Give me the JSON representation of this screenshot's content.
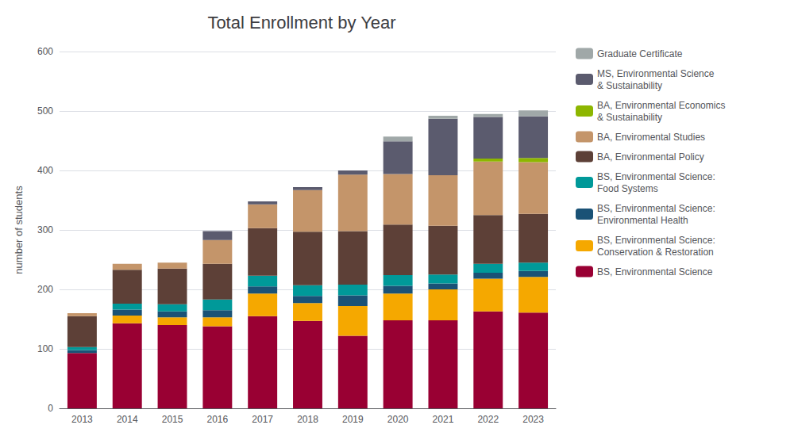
{
  "chart_data": {
    "type": "bar",
    "title": "Total Enrollment by Year",
    "ylabel": "number of students",
    "categories": [
      "2013",
      "2014",
      "2015",
      "2016",
      "2017",
      "2018",
      "2019",
      "2020",
      "2021",
      "2022",
      "2023"
    ],
    "series": [
      {
        "name": "BS, Environmental Science",
        "color": "#990033",
        "values": [
          93,
          143,
          140,
          138,
          155,
          147,
          122,
          148,
          148,
          163,
          161
        ]
      },
      {
        "name": "BS, Environmental Science:\nConservation & Restoration",
        "color": "#F5A800",
        "values": [
          0,
          13,
          13,
          15,
          38,
          30,
          50,
          45,
          52,
          55,
          60
        ]
      },
      {
        "name": "BS, Environmental Science:\nEnvironmental Health",
        "color": "#1A5276",
        "values": [
          5,
          10,
          10,
          12,
          12,
          12,
          18,
          13,
          10,
          10,
          10
        ]
      },
      {
        "name": "BS, Environmental Science:\nFood Systems",
        "color": "#009999",
        "values": [
          5,
          10,
          12,
          18,
          18,
          18,
          18,
          18,
          15,
          15,
          14
        ]
      },
      {
        "name": "BA, Environmental Policy",
        "color": "#5D4037",
        "values": [
          52,
          57,
          60,
          60,
          80,
          90,
          90,
          85,
          82,
          82,
          82
        ]
      },
      {
        "name": "BA, Enviromental Studies",
        "color": "#C4956A",
        "values": [
          5,
          10,
          10,
          40,
          40,
          70,
          95,
          85,
          85,
          90,
          87
        ]
      },
      {
        "name": "BA, Environmental Economics\n& Sustainability",
        "color": "#8DB600",
        "values": [
          0,
          0,
          0,
          0,
          0,
          0,
          0,
          0,
          0,
          5,
          7
        ]
      },
      {
        "name": "MS, Environmental Science\n& Sustainability",
        "color": "#5B5B6E",
        "values": [
          0,
          0,
          0,
          15,
          5,
          5,
          7,
          55,
          95,
          70,
          70
        ]
      },
      {
        "name": "Graduate Certificate",
        "color": "#A0A8A8",
        "values": [
          0,
          0,
          0,
          0,
          0,
          0,
          0,
          8,
          5,
          5,
          10
        ]
      }
    ],
    "ylim": [
      0,
      600
    ],
    "yticks": [
      0,
      100,
      200,
      300,
      400,
      500,
      600
    ],
    "stacked": true,
    "grid": true,
    "legend": "right"
  }
}
